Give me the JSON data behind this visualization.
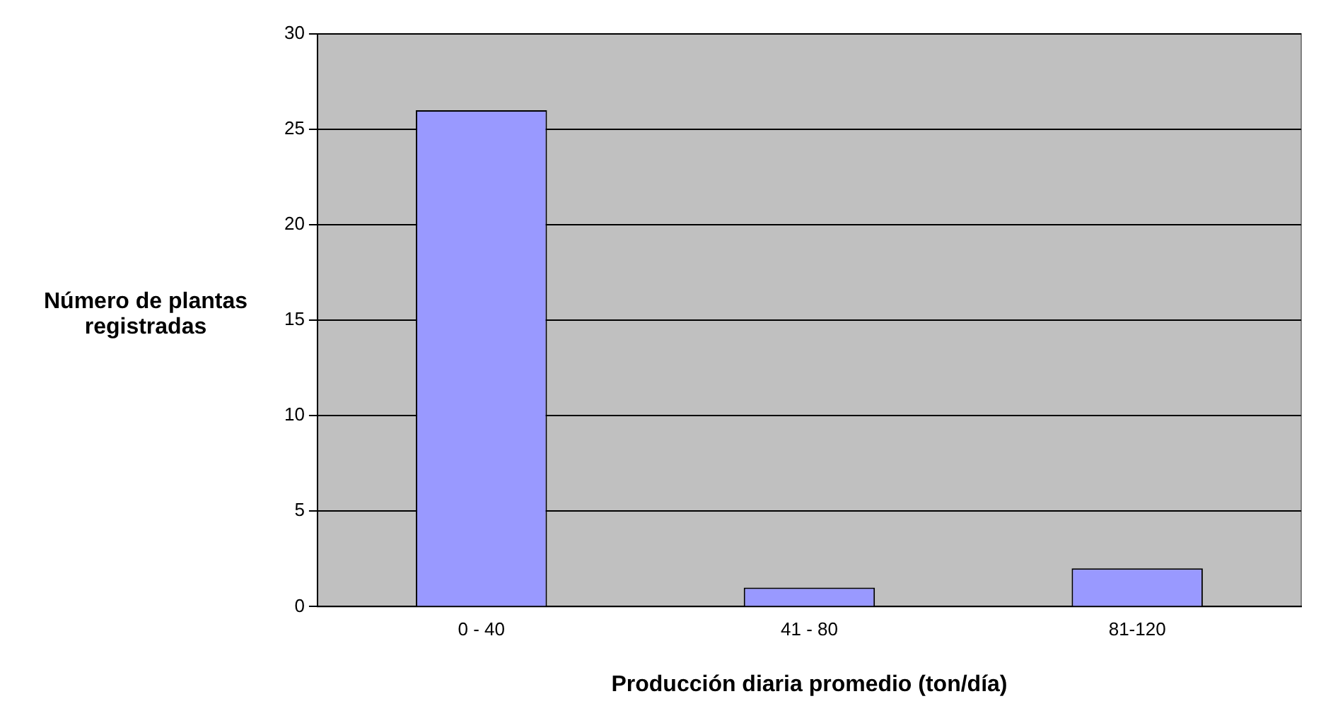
{
  "chart_data": {
    "type": "bar",
    "xlabel": "Producción diaria promedio (ton/día)",
    "ylabel": "Número de plantas registradas",
    "categories": [
      "0 - 40",
      "41 - 80",
      "81-120"
    ],
    "values": [
      26,
      1,
      2
    ],
    "color": "#9999ff",
    "ylim": [
      0,
      30
    ],
    "yticks": [
      0,
      5,
      10,
      15,
      20,
      25,
      30
    ],
    "grid": "y",
    "legend": false
  }
}
